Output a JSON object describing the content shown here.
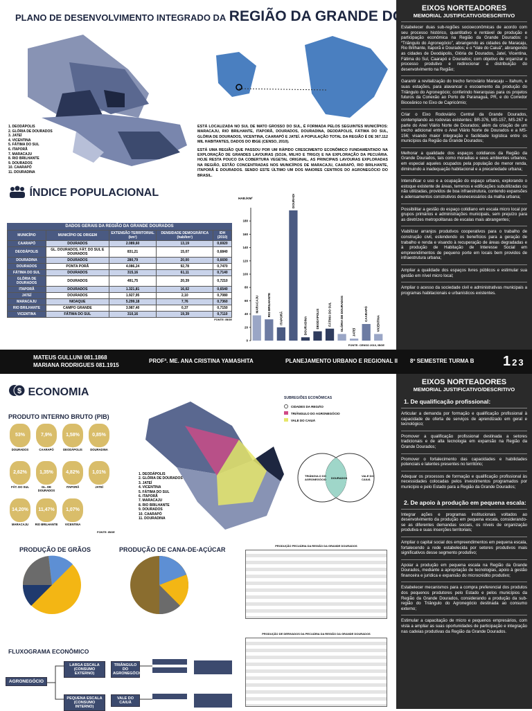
{
  "header": {
    "title_small": "PLANO DE DESENVOLVIMENTO INTEGRADO DA",
    "title_large": "REGIÃO DA GRANDE DOURADOS"
  },
  "region_map": {
    "legend": [
      "1. DEODÁPOLIS",
      "2. GLÓRIA DE DOURADOS",
      "3. JATEÍ",
      "4. VICENTINA",
      "5. FÁTIMA DO SUL",
      "6. ITAPORÃ",
      "7. MARACAJU",
      "8. RIO BRILHANTE",
      "9. DOURADOS",
      "10. CAARAPÓ",
      "11. DOURADINA"
    ]
  },
  "intro": [
    "ESTÁ LOCALIZADA NO SUL DE MATO GROSSO DO SUL, É FORMADA PELOS SEGUINTES MUNICÍPIOS: MARACAJU, RIO BRILHANTE, ITAPORÃ, DOURADOS, DOURADINA, DEODÁPOLIS, FÁTIMA DO SUL, GLÓRIA DE DOURADOS, VICENTINA, CAARAPÓ E JATEÍ. A POPULAÇÃO TOTAL DA REGIÃO É DE 367.112 MIL HABITANTES, DADOS DO IBGE (CENSO, 2010).",
    "ESTÁ UMA REGIÃO QUE PASSOU POR UM RÁPIDO CRESCIMENTO ECONÔMICO FUNDAMENTADO NA EXPLORAÇÃO DE GRANDES LAVOURAS (SOJA, MILHO E TRIGO) E NA EXPLORAÇÃO DA PECUÁRIA. HOJE RESTA POUCO DA COBERTURA VEGETAL ORIGINAL, AS PRINCIPAIS LAVOURAS EXPLORADAS NA REGIÃO, ESTÃO CONCENTRADAS NOS MUNICÍPIOS DE MARACAJU, CAARAPÓ, RIO BRILHANTE, ITAPORÃ E DOURADOS. SENDO ESTE ÚLTIMO UM DOS MAIORES CENTROS DO AGRONEGÓCIO DO BRASIL."
  ],
  "population": {
    "title": "ÍNDICE POPULACIONAL",
    "table": {
      "title": "DADOS GERAIS DA REGIÃO DA GRANDE DOURADOS",
      "columns": [
        "MUNICÍPIO",
        "MUNICÍPIO DE ORIGEM",
        "EXTENSÃO TERRITORIAL (km²)",
        "DENSIDADE DEMOGRÁFICA (hab/km²)",
        "IDH (2010)"
      ],
      "rows": [
        [
          "CAARAPÓ",
          "DOURADOS",
          "2.089,60",
          "13,19",
          "0,6920"
        ],
        [
          "DEODÁPOLIS",
          "GL. DOURADOS, FÁT. DO SUL E DOURADOS",
          "831,21",
          "15,07",
          "0,6840"
        ],
        [
          "DOURADINA",
          "DOURADOS",
          "280,79",
          "20,00",
          "0,6690"
        ],
        [
          "DOURADOS",
          "PONTA PORÃ",
          "4.086,24",
          "92,78",
          "0,7470"
        ],
        [
          "FÁTIMA DO SUL",
          "DOURADOS",
          "315,16",
          "61,11",
          "0,7140"
        ],
        [
          "GLÓRIA DE DOURADOS",
          "DOURADOS",
          "491,75",
          "20,39",
          "0,7210"
        ],
        [
          "ITAPORÃ",
          "DOURADOS",
          "1.321,81",
          "16,02",
          "0,6540"
        ],
        [
          "JATEÍ",
          "DOURADOS",
          "1.927,95",
          "2,10",
          "0,7080"
        ],
        [
          "MARACAJU",
          "NIOAQUE",
          "5.299,18",
          "7,76",
          "0,7360"
        ],
        [
          "RIO BRILHANTE",
          "CAMPO GRANDE",
          "3.987,40",
          "0,37",
          "0,7150"
        ],
        [
          "VICENTINA",
          "FÁTIMA DO SUL",
          "310,16",
          "19,39",
          "0,7110"
        ]
      ],
      "source": "FONTE: IBGE"
    },
    "chart": {
      "type": "bar",
      "y_label": "HAB./KM²",
      "categories": [
        "MARACAJU",
        "RIO BRILHANTE",
        "ITAPORÃ",
        "DOURADOS",
        "DOURADINA",
        "DEODÁPOLIS",
        "FÁTIMA DO SUL",
        "GLÓRIA DE DOURADOS",
        "JATEÍ",
        "CAARAPÓ",
        "VICENTINA"
      ],
      "values": [
        38,
        32,
        20,
        196,
        5,
        14,
        18,
        10,
        3,
        25,
        10
      ],
      "colors": [
        "#9aa6c6",
        "#6d7ca3",
        "#4a5a82",
        "#4a5a82",
        "#2f3c5e",
        "#2f3c5e",
        "#2f3c5e",
        "#9aa6c6",
        "#9aa6c6",
        "#6d7ca3",
        "#9aa6c6"
      ],
      "ylim": [
        0,
        200
      ],
      "yticks": [
        0,
        20,
        40,
        60,
        80,
        100,
        120,
        140,
        160,
        180
      ],
      "source": "FONTE: CENSO 2010, IBGE"
    }
  },
  "guidelines_top": {
    "title": "EIXOS NORTEADORES",
    "subtitle": "MEMORIAL JUSTIFICATIVO/DESCRITIVO",
    "items": [
      "Estabelecer duas sub-regiões socioeconômicas de acordo com seu processo histórico, quantitativo e rentável de produção e participação econômica na Região da Grande Dourados: o “Triângulo do Agronegócio”, abrangendo as cidades de Maracaju, Rio Brilhante, Itaporã e Dourados; e o “Vale do Caiuá”, abrangendo as cidades de Deodápolis, Glória de Dourados, Jateí, Vicentina, Fátima do Sul, Caarapó e Dourados; com objetivo de organizar o processo produtivo e redirecionar a distribuição do desenvolvimento na Região;",
      "Garantir a revitalização do trecho ferroviário Maracaju – Itahum, e suas estações, para alavancar o escoamento da produção do Triângulo do Agronegócio; conferindo hierarquias para os projetos futuros da Conexão ao Porto de Paranaguá, PR, e do Corredor Bioceânico no Eixo de Capricórnio;",
      "Criar o Eixo Rodoviário Central da Grande Dourados, contemplando as rodovias existentes: BR-376, MS-157, MS-267 e parte do Anel Viário Norte de Dourados; além da criação de um trecho adicional entre o Anel Viário Norte de Dourados e a MS-156; visando maior integração e facilidade logística entre os municípios da Região da Grande Dourados;",
      "Melhorar a qualidade dos espaços cotidianos da Região da Grande Dourados, tais como moradias e seus ambientes urbanos, em especial aqueles ocupados pela população de menor renda, diminuindo a inadequação habitacional e a precariedade urbana;",
      "Intensificar o uso e a ocupação do espaço urbano, explorando o estoque existente de áreas, terrenos e edificações subutilizadas ou não utilizadas, providos de boa infraestrutura, contendo expansões e adensamentos construtivos desnecessários da malha urbana;",
      "Possibilitar a gestão do espaço cotidiano em escala micro local por grupos primários e administrações municipais, sem prejuízo para as diretrizes metropolitanas de escalas mais abrangentes;",
      "Viabilizar arranjos produtivos cooperativos para o trabalho de construção civil, estendendo os benefícios para a geração de trabalho e renda e visando à recuperação de áreas degradadas e à produção de Habitação de Interesse Social em empreendimentos de pequeno porte em locais bem providos de infraestrutura urbana;",
      "Ampliar a qualidade dos espaços livres públicos e estimular sua gestão em nível micro local;",
      "Ampliar o acesso da sociedade civil e administrativas municipais a programas habitacionais e urbanísticos existentes."
    ]
  },
  "footer": {
    "authors": [
      "MATEUS GULLUNI 081.1868",
      "MARIANA RODRIGUES 081.1915"
    ],
    "professor": "PROFª. ME. ANA CRISTINA YAMASHITA",
    "course": "PLANEJAMENTO URBANO E REGIONAL II",
    "semester": "8º SEMESTRE TURMA B",
    "pages": [
      "1",
      "2",
      "3"
    ]
  },
  "economy": {
    "title": "ECONOMIA",
    "pib": {
      "title": "PRODUTO INTERNO BRUTO (PIB)",
      "items": [
        {
          "value": "53%",
          "name": "DOURADOS"
        },
        {
          "value": "7,9%",
          "name": "CAARAPÓ"
        },
        {
          "value": "1,58%",
          "name": "DEODÁPOLIS"
        },
        {
          "value": "0,85%",
          "name": "DOURADINA"
        },
        {
          "value": "2,62%",
          "name": "FÁT. DO SUL"
        },
        {
          "value": "1,35%",
          "name": "GL. DE DOURADOS"
        },
        {
          "value": "4,82%",
          "name": "ITAPORÃ"
        },
        {
          "value": "1,01%",
          "name": "JATEÍ"
        },
        {
          "value": "14,20%",
          "name": "MARACAJU"
        },
        {
          "value": "11,47%",
          "name": "RIO BRILHANTE"
        },
        {
          "value": "1,07%",
          "name": "VICENTINA"
        }
      ],
      "source": "FONTE: IBGE"
    },
    "subregions": {
      "title": "SUBREGIÕES ECONÔMICAS",
      "items": [
        "CIDADES DA REGIÃO",
        "TRIÂNGULO DO AGRONEGÓCIO",
        "VALE DO CAIUÁ"
      ]
    },
    "venn": [
      "TRIÂNGULO DO AGRONEGÓCIO",
      "DOURADOS",
      "VALE DO CAIUÁ"
    ],
    "grains_title": "PRODUÇÃO DE GRÃOS",
    "cane_title": "PRODUÇÃO DE CANA-DE-AÇÚCAR",
    "livestock_title": "PRODUÇÃO PECUÁRIA DA REGIÃO DA GRANDE DOURADOS",
    "derivatives_title": "PRODUÇÃO DE DERIVADOS DA PECUÁRIA DA REGIÃO DA GRANDE DOURADOS",
    "flow": {
      "title": "FLUXOGRAMA ECONÔMICO",
      "root": "AGRONEGÓCIO",
      "large": "LARGA ESCALA (CONSUMO EXTERNO)",
      "small": "PEQUENA ESCALA (CONSUMO INTERNO)",
      "triangle": "TRIÂNGULO DO AGRONEGÓCIO",
      "vale": "VALE DO CAIUÁ"
    }
  },
  "guidelines_bottom": {
    "title": "EIXOS NORTEADORES",
    "subtitle": "MEMORIAL JUSTIFICATIVO/DESCRITIVO",
    "sections": [
      {
        "heading": "1. De qualificação profissional:",
        "items": [
          "Articular a demanda por formação e qualificação profissional à capacidade de oferta de serviços de aprendizado em geral e tecnológico;",
          "Promover a qualificação profissional destinada a setores tradicionais e de alta tecnologia em expansão na Região da Grande Dourados;",
          "Promover o fortalecimento das capacidades e habilidades potenciais e latentes presentes no território;",
          "Adequar os processos de formação e qualificação profissional às necessidades colocadas pelos investimentos programados por município e pelo Estado para a Região da Grande Dourados;"
        ]
      },
      {
        "heading": "2. De apoio à produção em pequena escala:",
        "items": [
          "Integrar ações e programas institucionais voltados ao desenvolvimento da produção em pequena escala, considerando-se as diferentes demandas sociais, os níveis de organização produtiva e suas inserções territoriais;",
          "Ampliar o capital social dos empreendimentos em pequena escala, fortalecendo a rede estabelecida por setores produtivos mais significativos desse segmento produtivo;",
          "Apoiar a produção em pequena escala na Região da Grande Dourados, mediante a apropriação de tecnologias, apoio à gestão financeira e jurídica e expansão do microcrédito produtivo;",
          "Estabelecer mecanismos para a compra preferencial dos produtos dos pequenos produtores pelo Estado e pelos municípios da Região da Grande Dourados, considerando a produção da sub-região do Triângulo do Agronegócio destinada ao consumo externo;",
          "Estimular a capacitação de micro e pequenos empresários, com vista a ampliar as suas oportunidades de participação e integração nas cadeias produtivas da Região da Grande Dourados."
        ]
      }
    ]
  }
}
